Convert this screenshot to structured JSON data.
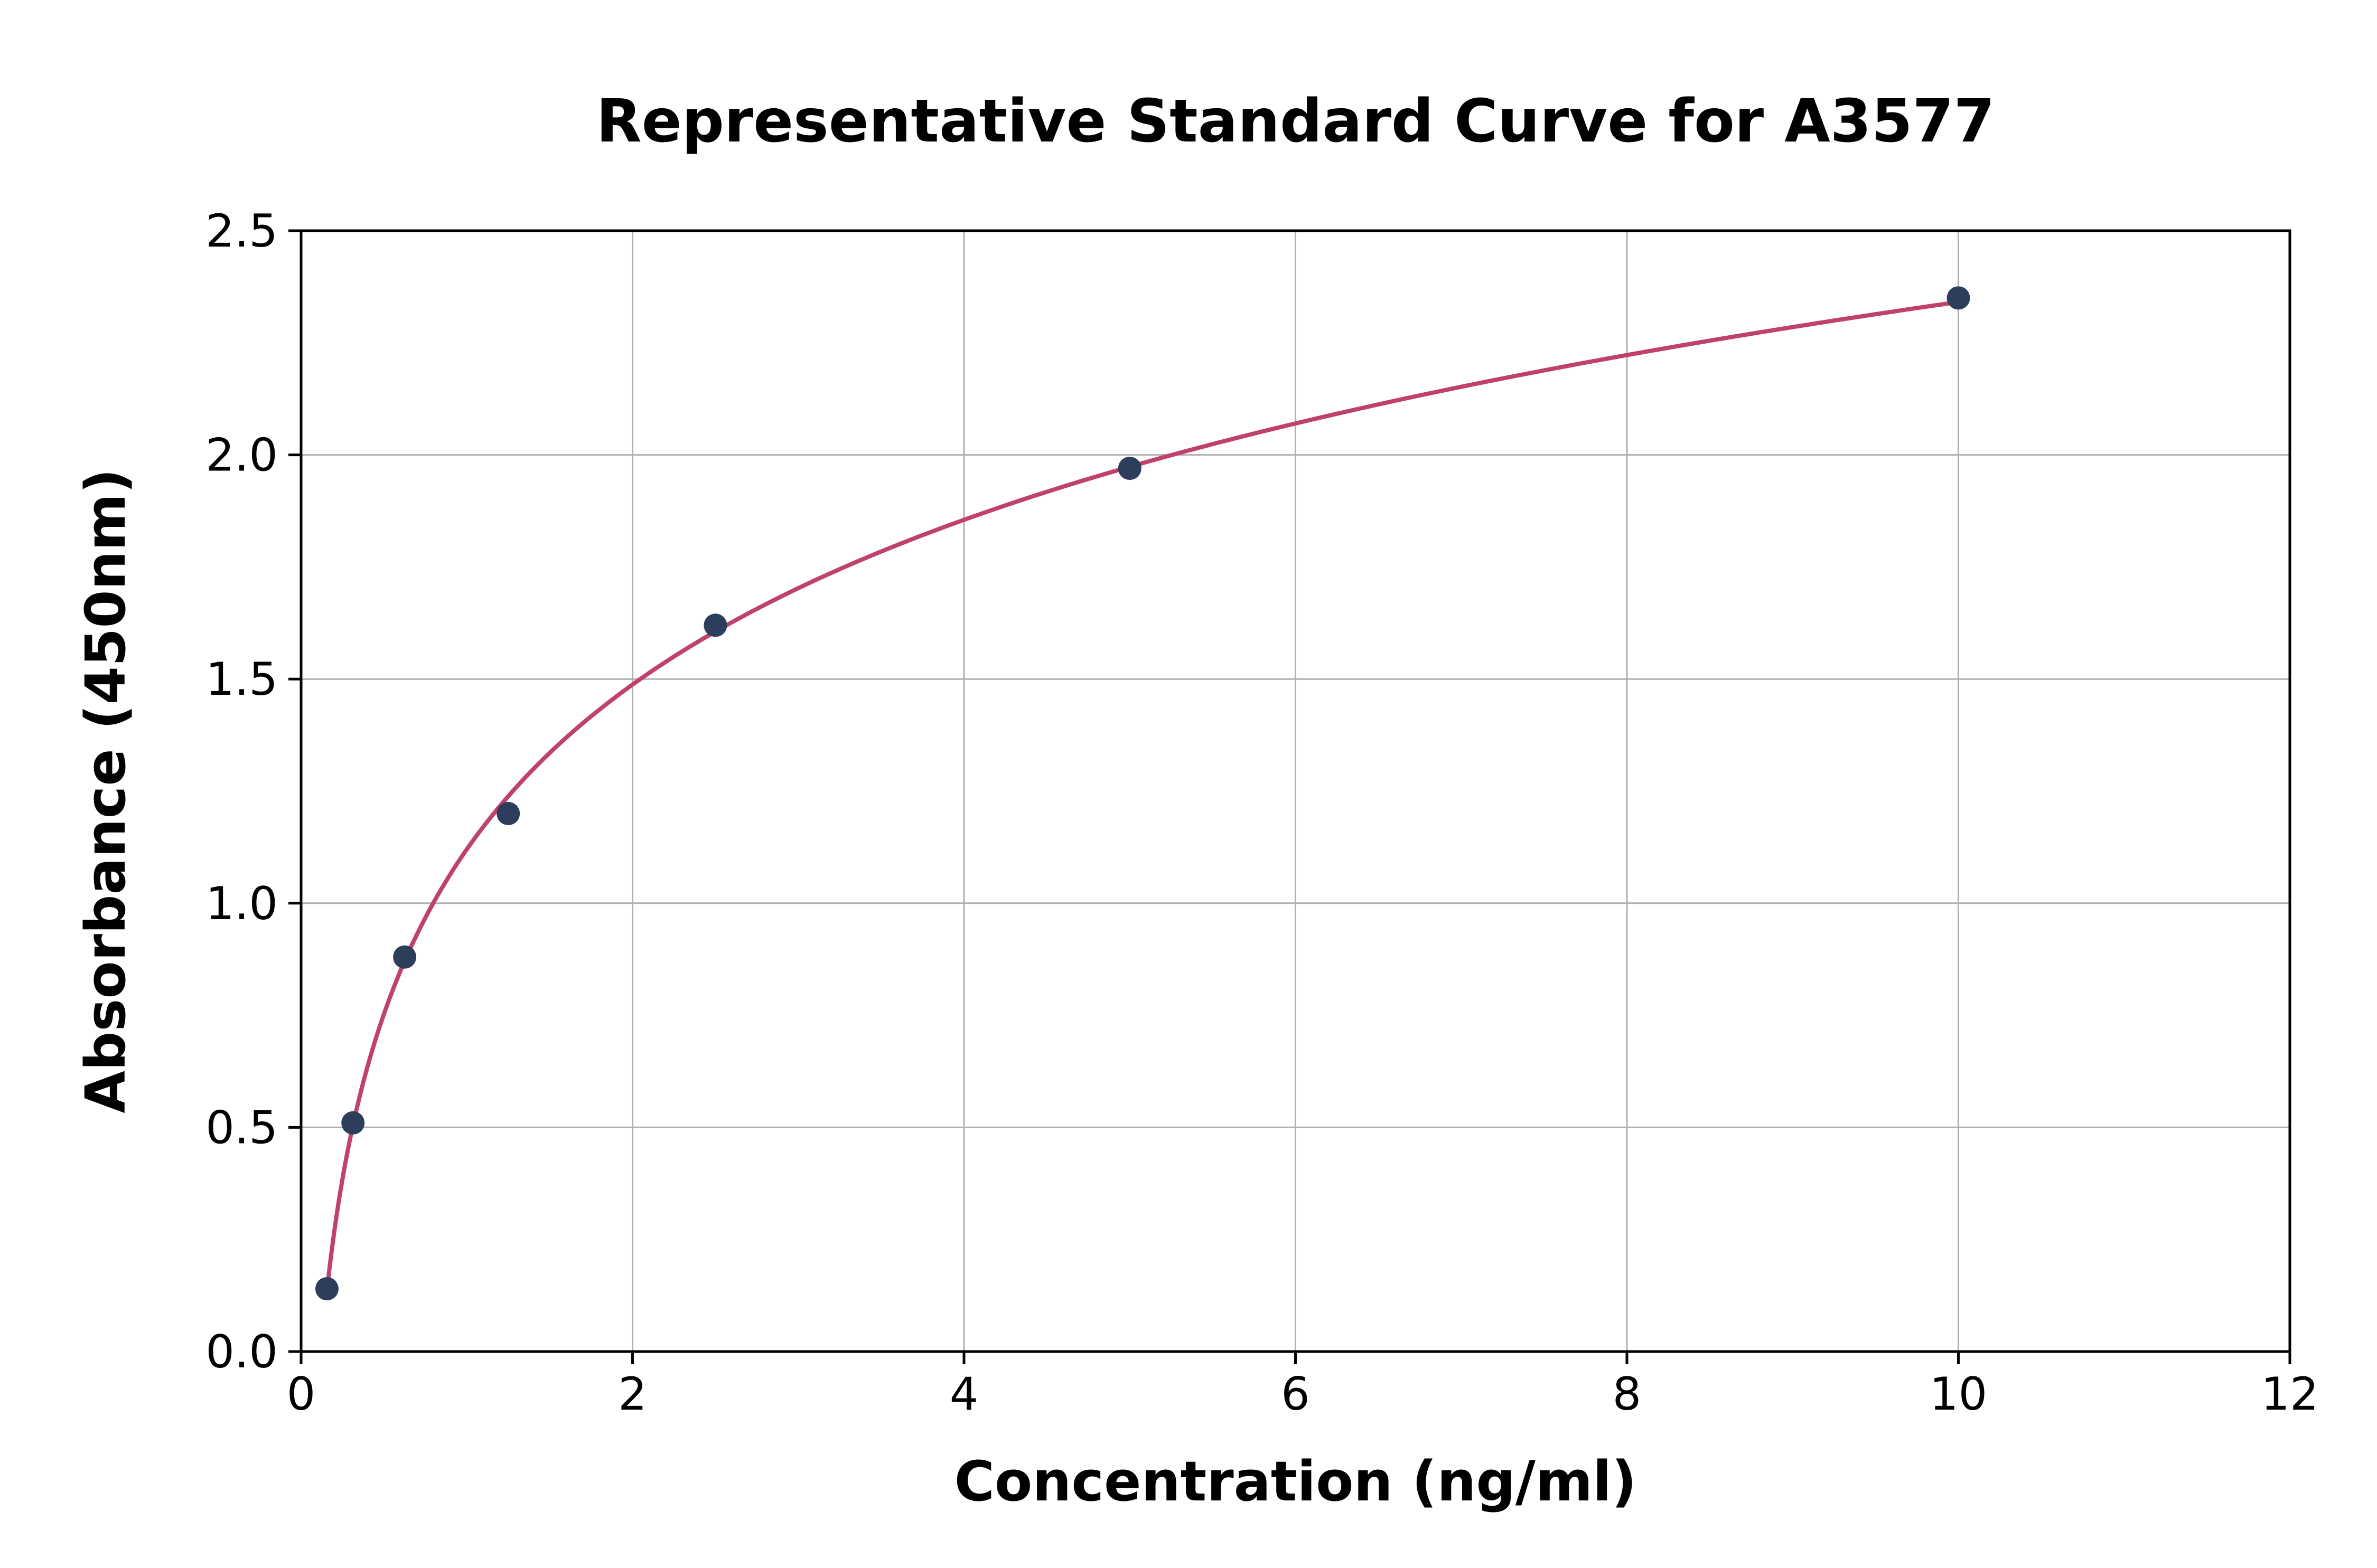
{
  "figure": {
    "title": "Representative Standard Curve for A3577",
    "xlabel": "Concentration (ng/ml)",
    "ylabel": "Absorbance (450nm)"
  },
  "chart_data": {
    "type": "scatter",
    "title": "Representative Standard Curve for A3577",
    "xlabel": "Concentration (ng/ml)",
    "ylabel": "Absorbance (450nm)",
    "x": [
      0.156,
      0.313,
      0.625,
      1.25,
      2.5,
      5,
      10
    ],
    "y": [
      0.14,
      0.51,
      0.88,
      1.2,
      1.62,
      1.97,
      2.35
    ],
    "fit": "logarithmic curve through the points",
    "xlim": [
      0,
      12
    ],
    "ylim": [
      0,
      2.5
    ],
    "xticks": {
      "values": [
        0,
        2,
        4,
        6,
        8,
        10,
        12
      ],
      "labels": [
        "0",
        "2",
        "4",
        "6",
        "8",
        "10",
        "12"
      ]
    },
    "yticks": {
      "values": [
        0,
        0.5,
        1.0,
        1.5,
        2.0,
        2.5
      ],
      "labels": [
        "0.0",
        "0.5",
        "1.0",
        "1.5",
        "2.0",
        "2.5"
      ]
    },
    "grid": true,
    "legend": "none",
    "colors": {
      "curve": "#c0416b",
      "points": "#2c3e5c",
      "grid": "#b0b0b0",
      "axis": "#000000",
      "background": "#ffffff"
    }
  }
}
